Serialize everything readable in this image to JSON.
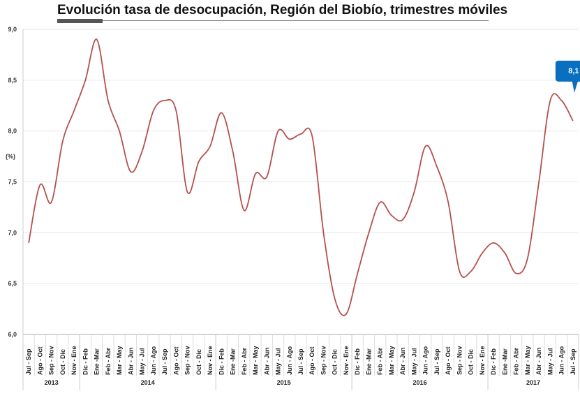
{
  "chart_data": {
    "type": "line",
    "title": "Evolución tasa de desocupación, Región del Biobío, trimestres móviles",
    "ylabel": "(%)",
    "xlabel": "",
    "ylim": [
      6.0,
      9.0
    ],
    "yticks": [
      "6,0",
      "6,5",
      "7,0",
      "7,5",
      "8,0",
      "8,5",
      "9,0"
    ],
    "grid": true,
    "line_color": "#b5504f",
    "years": [
      {
        "label": "2013",
        "count": 5
      },
      {
        "label": "2014",
        "count": 12
      },
      {
        "label": "2015",
        "count": 12
      },
      {
        "label": "2016",
        "count": 12
      },
      {
        "label": "2017",
        "count": 8
      }
    ],
    "categories": [
      "Jul - Sep",
      "Ago - Oct",
      "Sep - Nov",
      "Oct - Dic",
      "Nov - Ene",
      "Dic - Feb",
      "Ene -Mar",
      "Feb - Abr",
      "Mar - May",
      "Abr - Jun",
      "May - Jul",
      "Jun - Ago",
      "Jul - Sep",
      "Ago - Oct",
      "Sep - Nov",
      "Oct - Dic",
      "Nov - Ene",
      "Dic - Feb",
      "Ene -Mar",
      "Feb - Abr",
      "Mar - May",
      "Abr - Jun",
      "May - Jul",
      "Jun - Ago",
      "Jul - Sep",
      "Ago - Oct",
      "Sep - Nov",
      "Oct - Dic",
      "Nov - Ene",
      "Dic - Feb",
      "Ene -Mar",
      "Feb - Abr",
      "Mar - May",
      "Abr - Jun",
      "May - Jul",
      "Jun - Ago",
      "Jul - Sep",
      "Ago - Oct",
      "Sep - Nov",
      "Oct - Dic",
      "Nov - Ene",
      "Dic - Feb",
      "Ene -Mar",
      "Feb - Abr",
      "Mar - May",
      "Abr - Jun",
      "May - Jul",
      "Jun - Ago",
      "Jul - Sep"
    ],
    "series": [
      {
        "name": "Tasa de desocupación",
        "values": [
          6.9,
          7.47,
          7.3,
          7.9,
          8.2,
          8.5,
          8.9,
          8.3,
          8.0,
          7.6,
          7.8,
          8.2,
          8.3,
          8.2,
          7.4,
          7.7,
          7.85,
          8.18,
          7.8,
          7.22,
          7.58,
          7.55,
          8.0,
          7.92,
          7.97,
          7.95,
          7.0,
          6.35,
          6.2,
          6.6,
          7.0,
          7.3,
          7.17,
          7.13,
          7.4,
          7.85,
          7.65,
          7.3,
          6.62,
          6.62,
          6.8,
          6.9,
          6.8,
          6.6,
          6.75,
          7.5,
          8.3,
          8.3,
          8.1
        ]
      }
    ],
    "annotation": {
      "text": "8,1",
      "color": "#0b6fbf"
    }
  }
}
